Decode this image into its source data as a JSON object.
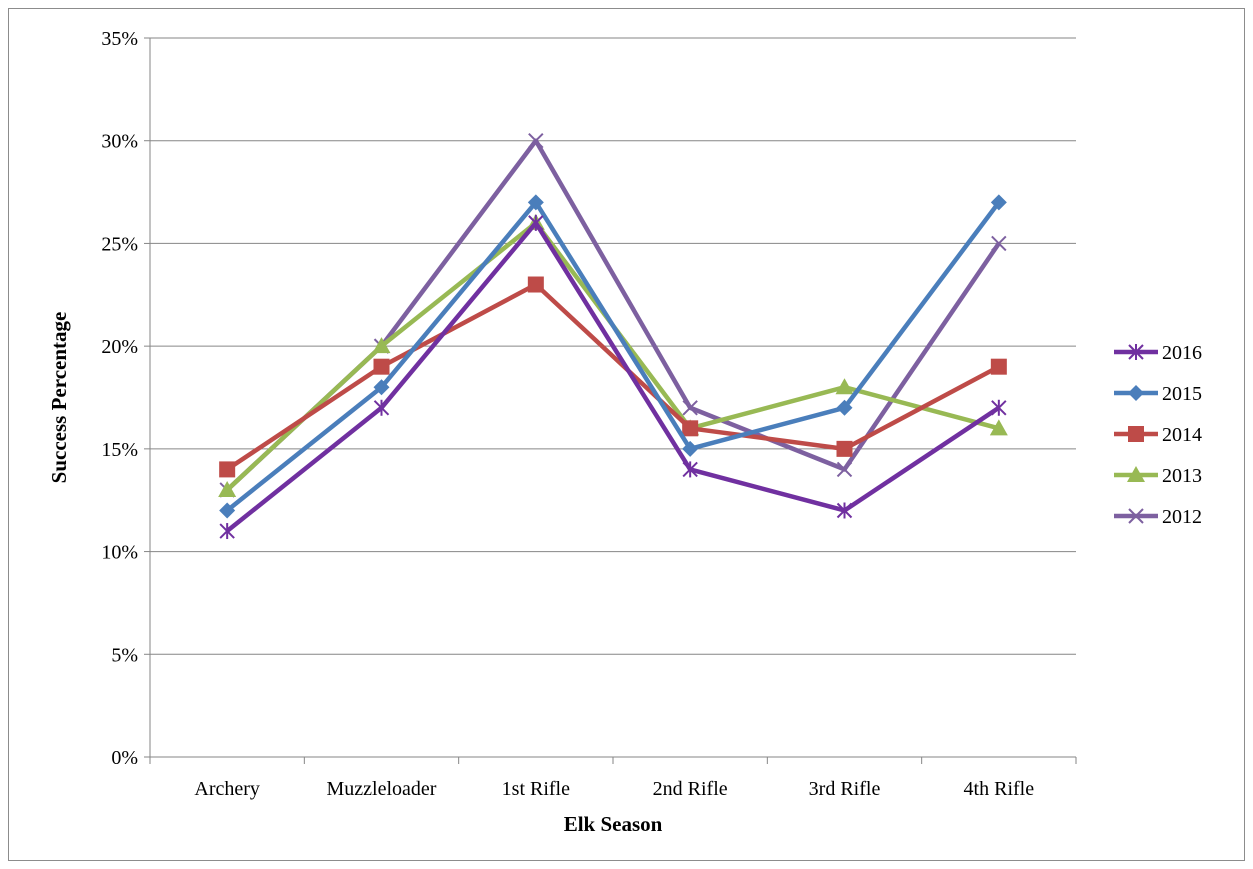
{
  "chart_data": {
    "type": "line",
    "title": "",
    "xlabel": "Elk Season",
    "ylabel": "Success Percentage",
    "categories": [
      "Archery",
      "Muzzleloader",
      "1st Rifle",
      "2nd Rifle",
      "3rd Rifle",
      "4th Rifle"
    ],
    "ylim": [
      0,
      35
    ],
    "ytick_step": 5,
    "ytick_labels": [
      "0%",
      "5%",
      "10%",
      "15%",
      "20%",
      "25%",
      "30%",
      "35%"
    ],
    "grid": true,
    "legend_position": "right",
    "series": [
      {
        "name": "2016",
        "color": "#7030a0",
        "marker": "star",
        "values": [
          11,
          17,
          26,
          14,
          12,
          17
        ]
      },
      {
        "name": "2015",
        "color": "#4a7ebb",
        "marker": "diamond",
        "values": [
          12,
          18,
          27,
          15,
          17,
          27
        ]
      },
      {
        "name": "2014",
        "color": "#be4b48",
        "marker": "square",
        "values": [
          14,
          19,
          23,
          16,
          15,
          19
        ]
      },
      {
        "name": "2013",
        "color": "#98b954",
        "marker": "triangle",
        "values": [
          13,
          20,
          26,
          16,
          18,
          16
        ]
      },
      {
        "name": "2012",
        "color": "#7d60a0",
        "marker": "x",
        "values": [
          13,
          20,
          30,
          17,
          14,
          25
        ]
      }
    ]
  }
}
